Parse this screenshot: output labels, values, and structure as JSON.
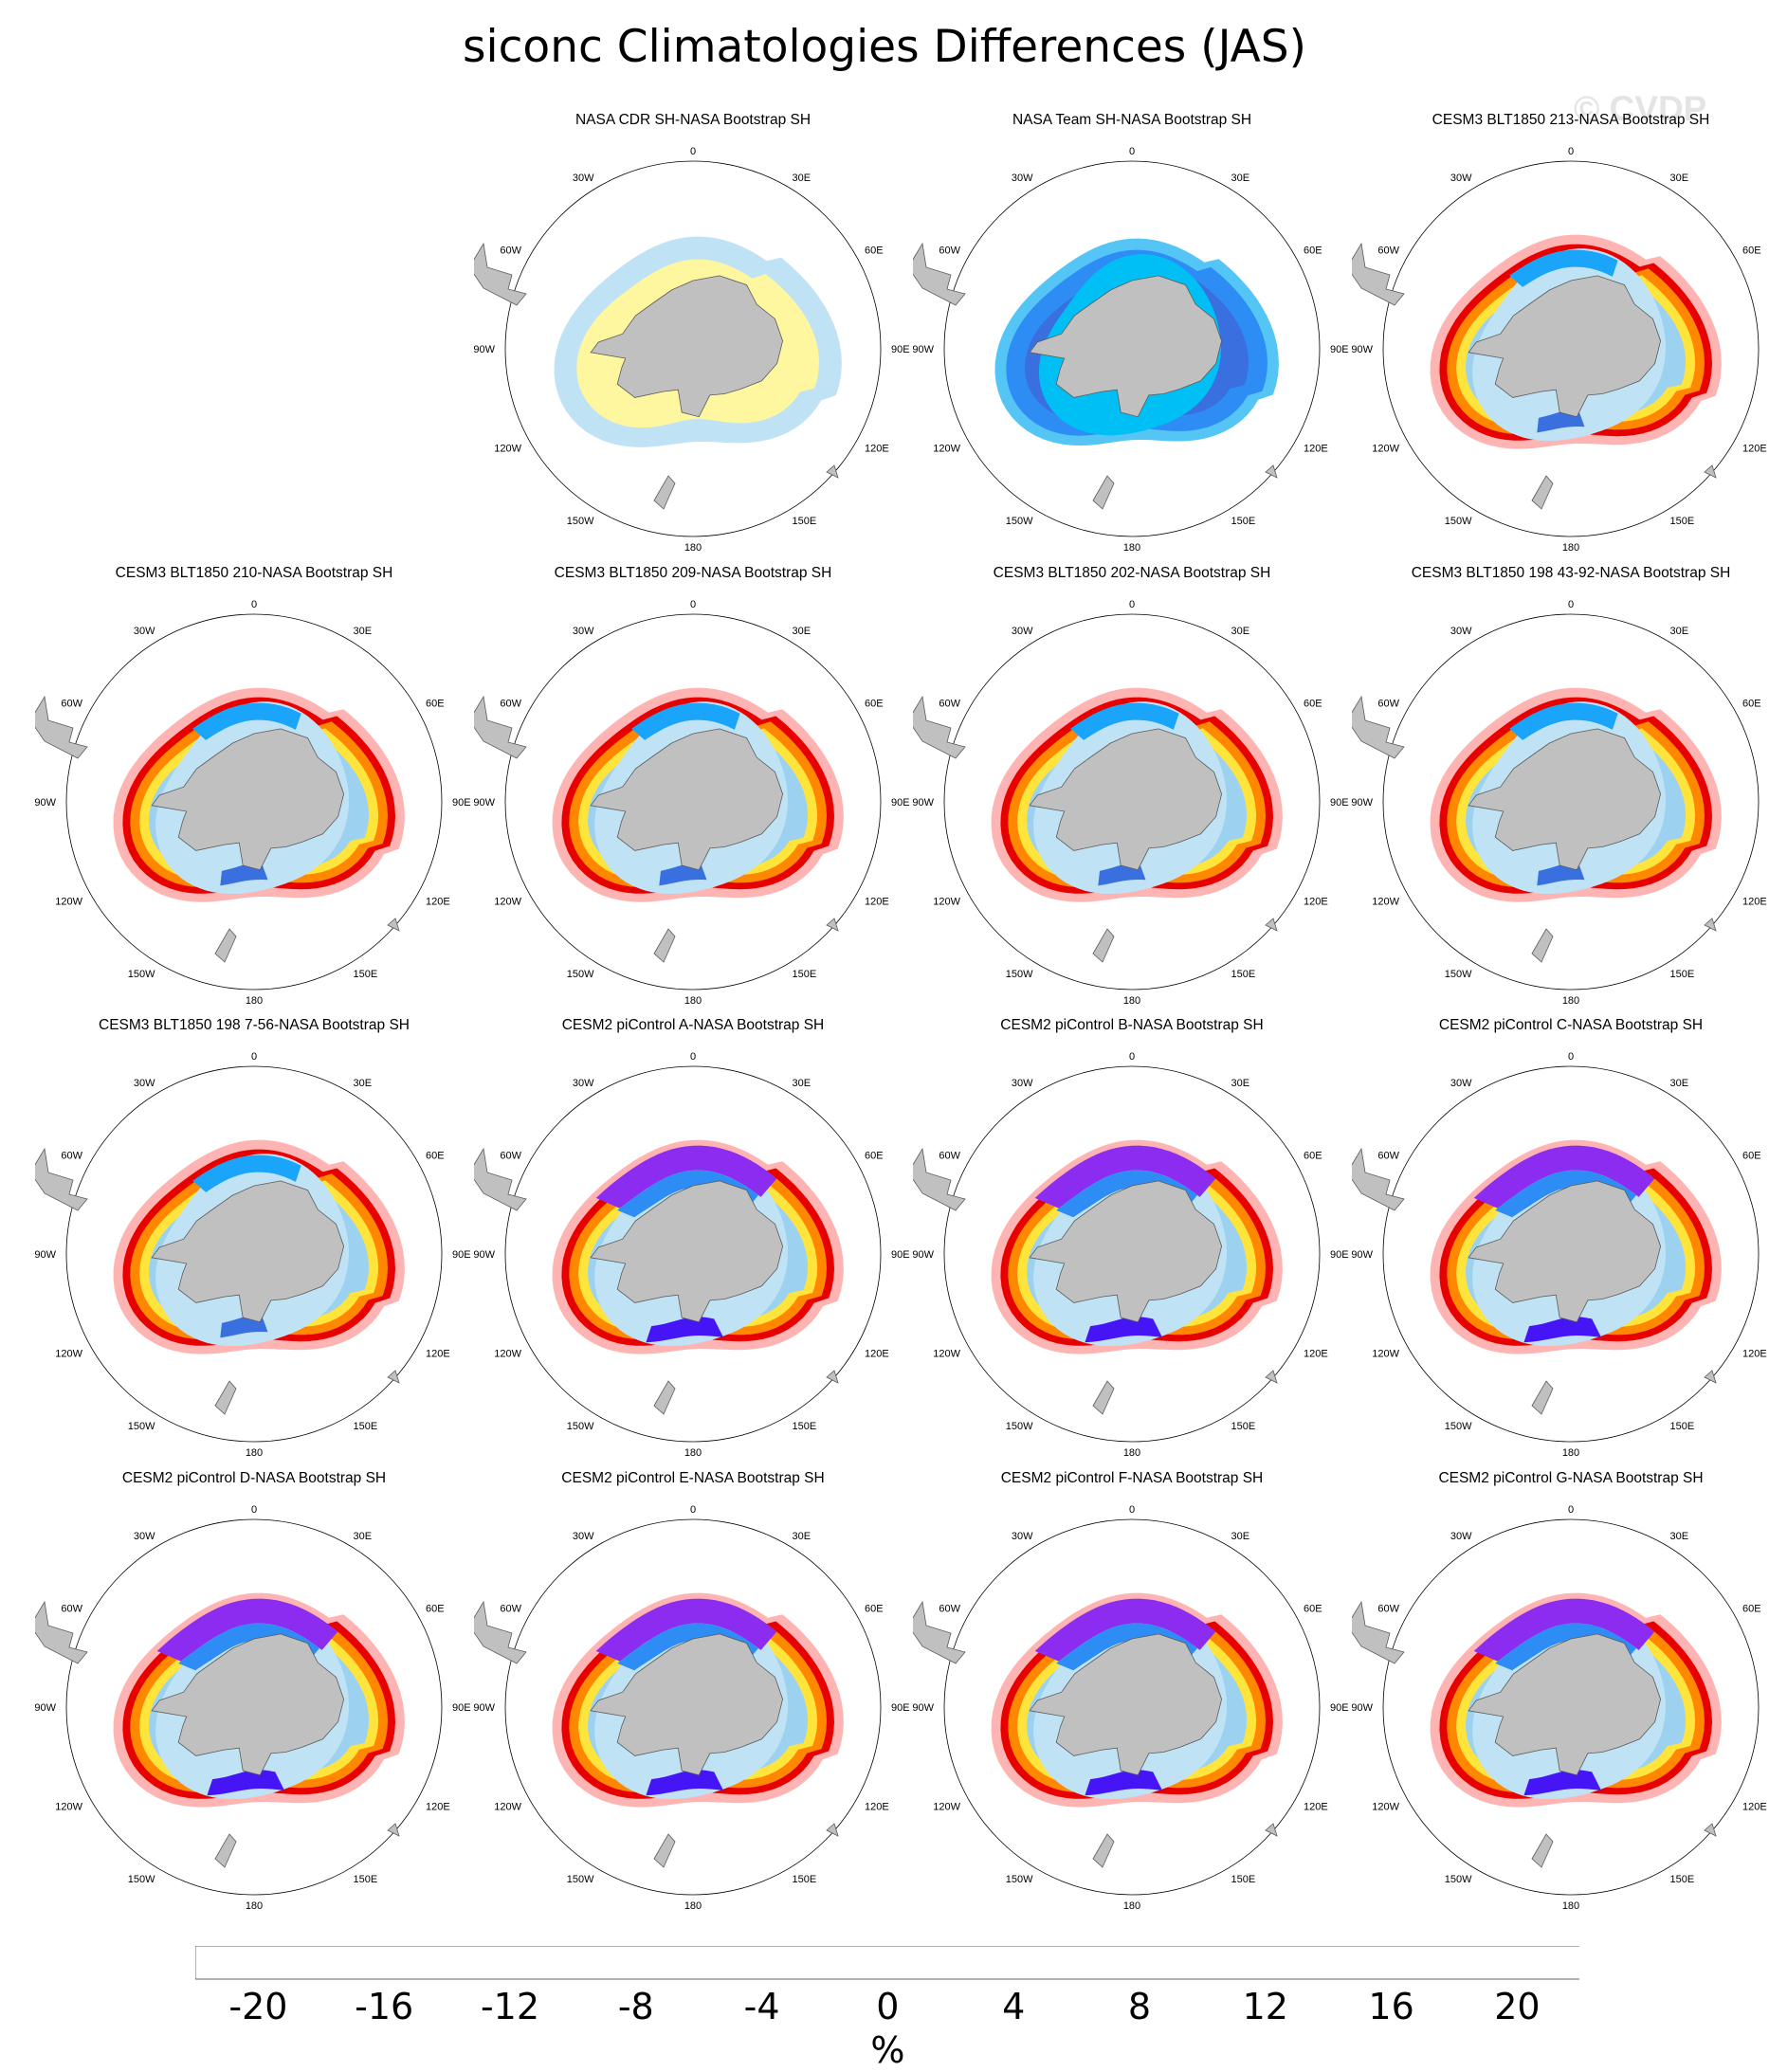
{
  "title": "siconc Climatologies Differences (JAS)",
  "watermark": "© CVDP",
  "land_color": "#c0c0c0",
  "coast_color": "#5a5a5a",
  "lon_labels": [
    "0",
    "30E",
    "60E",
    "90E",
    "120E",
    "150E",
    "180",
    "150W",
    "120W",
    "90W",
    "60W",
    "30W"
  ],
  "panels": [
    {
      "title": "NASA CDR SH-NASA Bootstrap SH",
      "style": "cdr"
    },
    {
      "title": "NASA Team SH-NASA Bootstrap SH",
      "style": "team"
    },
    {
      "title": "CESM3 BLT1850 213-NASA Bootstrap SH",
      "style": "blt"
    },
    {
      "title": "CESM3 BLT1850 210-NASA Bootstrap SH",
      "style": "blt"
    },
    {
      "title": "CESM3 BLT1850 209-NASA Bootstrap SH",
      "style": "blt"
    },
    {
      "title": "CESM3 BLT1850 202-NASA Bootstrap SH",
      "style": "blt"
    },
    {
      "title": "CESM3 BLT1850 198 43-92-NASA Bootstrap SH",
      "style": "blt"
    },
    {
      "title": "CESM3 BLT1850 198 7-56-NASA Bootstrap SH",
      "style": "blt"
    },
    {
      "title": "CESM2 piControl A-NASA Bootstrap SH",
      "style": "pic"
    },
    {
      "title": "CESM2 piControl B-NASA Bootstrap SH",
      "style": "pic"
    },
    {
      "title": "CESM2 piControl C-NASA Bootstrap SH",
      "style": "pic"
    },
    {
      "title": "CESM2 piControl D-NASA Bootstrap SH",
      "style": "pic"
    },
    {
      "title": "CESM2 piControl E-NASA Bootstrap SH",
      "style": "pic"
    },
    {
      "title": "CESM2 piControl F-NASA Bootstrap SH",
      "style": "pic"
    },
    {
      "title": "CESM2 piControl G-NASA Bootstrap SH",
      "style": "pic"
    }
  ],
  "colorbar": {
    "colors": [
      "#8b2cf0",
      "#4515f5",
      "#0d0df5",
      "#2d4be0",
      "#3a6fe0",
      "#2d8df5",
      "#1aa5fa",
      "#00bff5",
      "#55c5f5",
      "#9cd2ef",
      "#bfe3f5",
      "#fff6a0",
      "#ffe43c",
      "#ffc41a",
      "#ffa500",
      "#ff8800",
      "#ff5a00",
      "#ff2000",
      "#e60000",
      "#c80000",
      "#dc4040",
      "#ffb4b4"
    ],
    "tick_labels": [
      "-20",
      "-16",
      "-12",
      "-8",
      "-4",
      "0",
      "4",
      "8",
      "12",
      "16",
      "20"
    ],
    "unit": "%"
  }
}
